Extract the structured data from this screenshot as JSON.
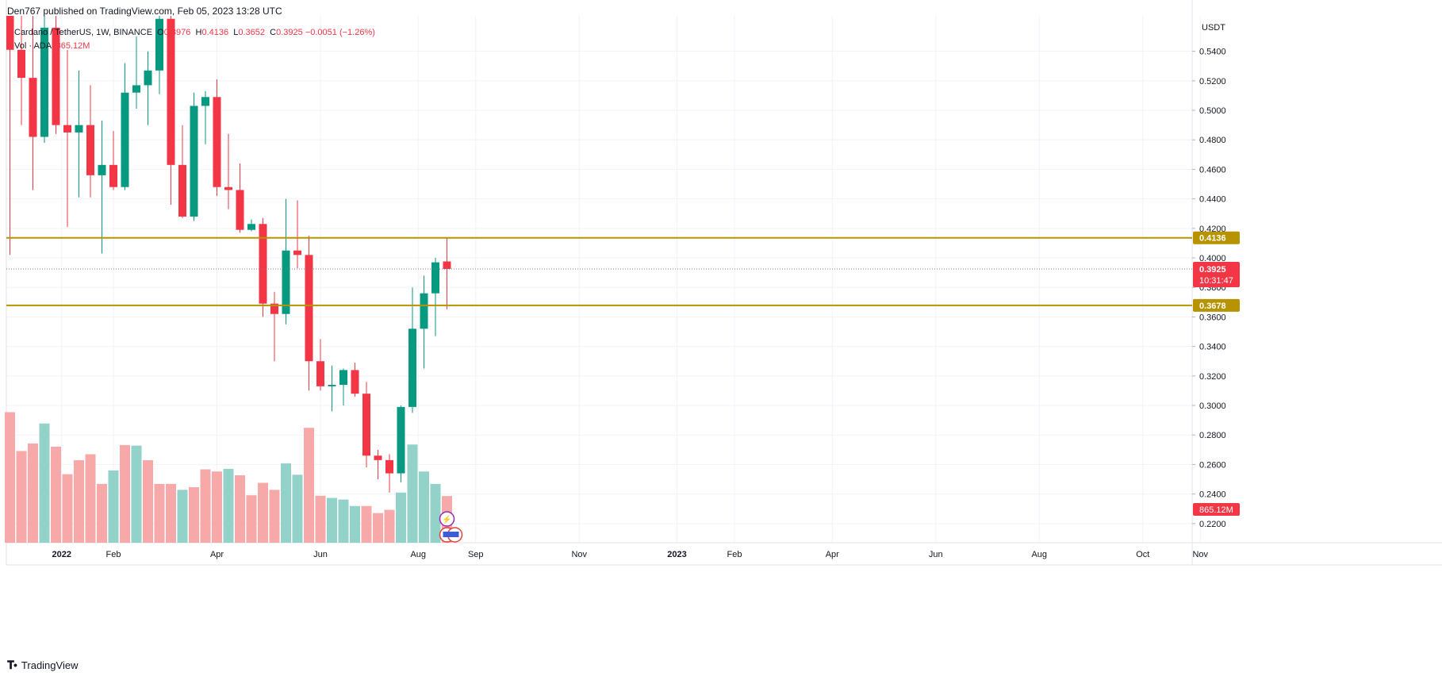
{
  "header": {
    "published": "Den767 published on TradingView.com, Feb 05, 2023 13:28 UTC",
    "symbol": "Cardano / TetherUS, 1W, BINANCE",
    "open_label": "O",
    "open": "0.3976",
    "high_label": "H",
    "high": "0.4136",
    "low_label": "L",
    "low": "0.3652",
    "close_label": "C",
    "close": "0.3925",
    "change": "−0.0051 (−1.26%)",
    "vol_label": "Vol · ADA",
    "vol_value": "865.12M"
  },
  "footer": {
    "brand": "TradingView"
  },
  "colors": {
    "up": "#089981",
    "down": "#f23645",
    "vol_up": "#92d2c9",
    "vol_down": "#f7a9a9",
    "level_line": "#b89300",
    "level_label_bg": "#b89300",
    "price_label_bg": "#f23645"
  },
  "chart_data": {
    "type": "candlestick",
    "timeframe": "1W",
    "y_axis_unit": "USDT",
    "ylim": [
      0.207,
      0.564
    ],
    "y_ticks": [
      0.22,
      0.24,
      0.26,
      0.28,
      0.3,
      0.32,
      0.34,
      0.36,
      0.38,
      0.4,
      0.42,
      0.44,
      0.46,
      0.48,
      0.5,
      0.52,
      0.54
    ],
    "y_tick_labels": [
      "0.2200",
      "0.2400",
      "0.2600",
      "0.2800",
      "0.3000",
      "0.3200",
      "0.3400",
      "0.3600",
      "0.3800",
      "0.4000",
      "0.4200",
      "0.4400",
      "0.4600",
      "0.4800",
      "0.5000",
      "0.5200",
      "0.5400"
    ],
    "x_labels": [
      {
        "label": "2022",
        "bar_index": 4.5,
        "bold": true
      },
      {
        "label": "Feb",
        "bar_index": 9
      },
      {
        "label": "Apr",
        "bar_index": 18
      },
      {
        "label": "Jun",
        "bar_index": 27
      },
      {
        "label": "Aug",
        "bar_index": 35.5
      },
      {
        "label": "Sep",
        "bar_index": 40.5
      },
      {
        "label": "Nov",
        "bar_index": 49.5
      },
      {
        "label": "2023",
        "bar_index": 58,
        "bold": true
      },
      {
        "label": "Feb",
        "bar_index": 63
      },
      {
        "label": "Apr",
        "bar_index": 71.5
      },
      {
        "label": "Jun",
        "bar_index": 80.5
      },
      {
        "label": "Aug",
        "bar_index": 89.5
      },
      {
        "label": "Oct",
        "bar_index": 98.5
      },
      {
        "label": "Nov",
        "bar_index": 103.5
      }
    ],
    "levels": [
      {
        "value": 0.4136,
        "label": "0.4136"
      },
      {
        "value": 0.3678,
        "label": "0.3678"
      }
    ],
    "last_price": {
      "value": 0.3925,
      "label": "0.3925",
      "countdown": "10:31:47"
    },
    "volume_label": "865.12M",
    "candles": [
      {
        "o": 0.6,
        "h": 0.6,
        "l": 0.402,
        "c": 0.541
      },
      {
        "o": 0.541,
        "h": 0.6,
        "l": 0.49,
        "c": 0.522
      },
      {
        "o": 0.522,
        "h": 0.6,
        "l": 0.446,
        "c": 0.482
      },
      {
        "o": 0.482,
        "h": 0.6,
        "l": 0.478,
        "c": 0.556
      },
      {
        "o": 0.556,
        "h": 0.58,
        "l": 0.484,
        "c": 0.49
      },
      {
        "o": 0.49,
        "h": 0.541,
        "l": 0.421,
        "c": 0.485
      },
      {
        "o": 0.485,
        "h": 0.527,
        "l": 0.441,
        "c": 0.49
      },
      {
        "o": 0.49,
        "h": 0.517,
        "l": 0.441,
        "c": 0.456
      },
      {
        "o": 0.456,
        "h": 0.493,
        "l": 0.403,
        "c": 0.463
      },
      {
        "o": 0.463,
        "h": 0.486,
        "l": 0.446,
        "c": 0.448
      },
      {
        "o": 0.448,
        "h": 0.532,
        "l": 0.446,
        "c": 0.512
      },
      {
        "o": 0.512,
        "h": 0.55,
        "l": 0.501,
        "c": 0.517
      },
      {
        "o": 0.517,
        "h": 0.54,
        "l": 0.49,
        "c": 0.527
      },
      {
        "o": 0.527,
        "h": 0.571,
        "l": 0.511,
        "c": 0.562
      },
      {
        "o": 0.562,
        "h": 0.568,
        "l": 0.436,
        "c": 0.463
      },
      {
        "o": 0.463,
        "h": 0.49,
        "l": 0.427,
        "c": 0.428
      },
      {
        "o": 0.428,
        "h": 0.512,
        "l": 0.425,
        "c": 0.503
      },
      {
        "o": 0.503,
        "h": 0.513,
        "l": 0.477,
        "c": 0.509
      },
      {
        "o": 0.509,
        "h": 0.521,
        "l": 0.442,
        "c": 0.448
      },
      {
        "o": 0.448,
        "h": 0.484,
        "l": 0.433,
        "c": 0.446
      },
      {
        "o": 0.446,
        "h": 0.464,
        "l": 0.417,
        "c": 0.419
      },
      {
        "o": 0.419,
        "h": 0.426,
        "l": 0.418,
        "c": 0.423
      },
      {
        "o": 0.423,
        "h": 0.427,
        "l": 0.36,
        "c": 0.369
      },
      {
        "o": 0.369,
        "h": 0.377,
        "l": 0.33,
        "c": 0.362
      },
      {
        "o": 0.362,
        "h": 0.44,
        "l": 0.355,
        "c": 0.405
      },
      {
        "o": 0.405,
        "h": 0.439,
        "l": 0.393,
        "c": 0.402
      },
      {
        "o": 0.402,
        "h": 0.415,
        "l": 0.31,
        "c": 0.33
      },
      {
        "o": 0.33,
        "h": 0.345,
        "l": 0.31,
        "c": 0.313
      },
      {
        "o": 0.313,
        "h": 0.327,
        "l": 0.296,
        "c": 0.314
      },
      {
        "o": 0.314,
        "h": 0.325,
        "l": 0.3,
        "c": 0.324
      },
      {
        "o": 0.324,
        "h": 0.329,
        "l": 0.306,
        "c": 0.308
      },
      {
        "o": 0.308,
        "h": 0.316,
        "l": 0.258,
        "c": 0.266
      },
      {
        "o": 0.266,
        "h": 0.27,
        "l": 0.25,
        "c": 0.263
      },
      {
        "o": 0.263,
        "h": 0.267,
        "l": 0.241,
        "c": 0.254
      },
      {
        "o": 0.254,
        "h": 0.3,
        "l": 0.248,
        "c": 0.299
      },
      {
        "o": 0.299,
        "h": 0.38,
        "l": 0.295,
        "c": 0.352
      },
      {
        "o": 0.352,
        "h": 0.388,
        "l": 0.325,
        "c": 0.376
      },
      {
        "o": 0.376,
        "h": 0.4,
        "l": 0.347,
        "c": 0.397
      },
      {
        "o": 0.3976,
        "h": 0.4136,
        "l": 0.3652,
        "c": 0.3925
      }
    ],
    "volumes": [
      {
        "v": 2.42,
        "up": false
      },
      {
        "v": 1.7,
        "up": false
      },
      {
        "v": 1.84,
        "up": false
      },
      {
        "v": 2.21,
        "up": true
      },
      {
        "v": 1.78,
        "up": false
      },
      {
        "v": 1.27,
        "up": false
      },
      {
        "v": 1.53,
        "up": false
      },
      {
        "v": 1.64,
        "up": false
      },
      {
        "v": 1.09,
        "up": false
      },
      {
        "v": 1.34,
        "up": true
      },
      {
        "v": 1.81,
        "up": false
      },
      {
        "v": 1.8,
        "up": true
      },
      {
        "v": 1.53,
        "up": false
      },
      {
        "v": 1.09,
        "up": false
      },
      {
        "v": 1.09,
        "up": false
      },
      {
        "v": 0.98,
        "up": true
      },
      {
        "v": 1.03,
        "up": false
      },
      {
        "v": 1.36,
        "up": false
      },
      {
        "v": 1.32,
        "up": false
      },
      {
        "v": 1.37,
        "up": true
      },
      {
        "v": 1.25,
        "up": false
      },
      {
        "v": 0.88,
        "up": false
      },
      {
        "v": 1.11,
        "up": false
      },
      {
        "v": 0.98,
        "up": false
      },
      {
        "v": 1.47,
        "up": true
      },
      {
        "v": 1.26,
        "up": true
      },
      {
        "v": 2.13,
        "up": false
      },
      {
        "v": 0.87,
        "up": false
      },
      {
        "v": 0.83,
        "up": true
      },
      {
        "v": 0.8,
        "up": true
      },
      {
        "v": 0.68,
        "up": true
      },
      {
        "v": 0.68,
        "up": false
      },
      {
        "v": 0.55,
        "up": false
      },
      {
        "v": 0.61,
        "up": false
      },
      {
        "v": 0.93,
        "up": true
      },
      {
        "v": 1.82,
        "up": true
      },
      {
        "v": 1.32,
        "up": true
      },
      {
        "v": 1.09,
        "up": true
      },
      {
        "v": 0.865,
        "up": false
      }
    ]
  }
}
